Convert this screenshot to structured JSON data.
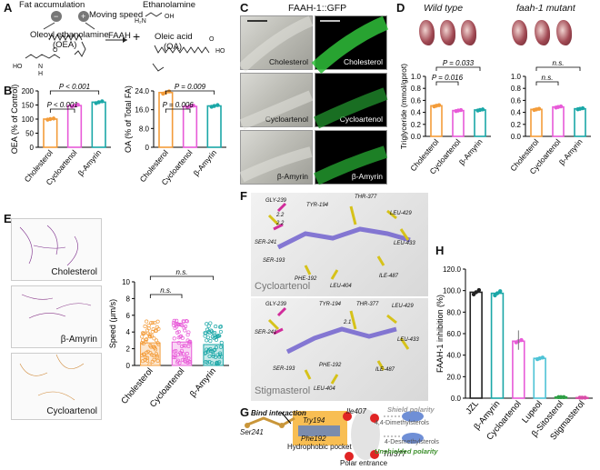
{
  "colors": {
    "cholesterol": "#f39c3a",
    "cycloartenol": "#e85ad8",
    "amyrin": "#1aa7a7",
    "lupeol": "#4ec3d6",
    "sitosterol": "#2e9e44",
    "stigmasterol": "#d94ca8",
    "jzl": "#222222",
    "orange_bar": "#f7a03c"
  },
  "panels": {
    "A": "A",
    "B": "B",
    "C": "C",
    "D": "D",
    "E": "E",
    "F": "F",
    "G": "G",
    "H": "H"
  },
  "panelA": {
    "fat_accumulation": "Fat accumulation",
    "moving_speed": "Moving speed",
    "ethanolamine": "Ethanolamine",
    "oea": "Oleoyl ethanolamine",
    "oea_abbr": "(OEA)",
    "faah": "FAAH",
    "plus": "+",
    "oleic_acid": "Oleic acid",
    "oa_abbr": "(OA)",
    "h2n": "H₂N",
    "ho": "HO",
    "oh": "OH",
    "ho2": "HO",
    "nh": "N",
    "h": "H",
    "o": "O",
    "o2": "O",
    "minus": "−",
    "plus_sign": "+"
  },
  "panelC": {
    "title": "FAAH-1::GFP",
    "labels": [
      "Cholesterol",
      "Cycloartenol",
      "β-Amyrin"
    ]
  },
  "panelD": {
    "wild_type": "Wild type",
    "mutant": "faah-1 mutant",
    "ylabel": "Triglyceride (mmol/gprot)"
  },
  "panelE": {
    "tracks": [
      "Cholesterol",
      "β-Amyrin",
      "Cycloartenol"
    ],
    "ylabel": "Speed (μm/s)"
  },
  "panelF": {
    "top_label": "Cycloartenol",
    "bottom_label": "Stigmasterol",
    "residues_top": [
      "GLY-239",
      "TYR-194",
      "THR-377",
      "LEU-429",
      "SER-241",
      "LEU-433",
      "SER-193",
      "PHE-192",
      "ILE-487",
      "LEU-404"
    ],
    "residues_bottom": [
      "GLY-239",
      "TYR-194",
      "THR-377",
      "LEU-429",
      "SER-241",
      "LEU-433",
      "SER-193",
      "PHE-192",
      "ILE-487",
      "LEU-404"
    ],
    "dist_top": [
      "2.2",
      "2.2"
    ],
    "dist_bottom": [
      "2.1"
    ]
  },
  "panelG": {
    "bind_interaction": "Bind interaction",
    "ile407": "Ile407",
    "try194": "Try194",
    "ser241": "Ser241",
    "phe192": "Phe192",
    "hydrophobic_pocket": "Hydrophobic pocket",
    "thr377": "Thr377",
    "polar_entrance": "Polar entrance",
    "shield": "Shield polarity",
    "dimethyl": "4,4-Dimethylsterols",
    "desmethyl": "4-Desmethylsterols",
    "unshielded": "Unshielded polarity"
  },
  "chart_data": [
    {
      "type": "bar",
      "panel": "B-left",
      "categories": [
        "Cholesterol",
        "Cycloartenol",
        "β-Amyrin"
      ],
      "values": [
        100,
        148,
        160
      ],
      "ylabel": "OEA (% of Control)",
      "ylim": [
        0,
        200
      ],
      "yticks": [
        0,
        50,
        100,
        150,
        200
      ],
      "annotations": [
        {
          "text": "P < 0.001",
          "pair": [
            "Cholesterol",
            "β-Amyrin"
          ]
        },
        {
          "text": "P < 0.001",
          "pair": [
            "Cholesterol",
            "Cycloartenol"
          ]
        }
      ]
    },
    {
      "type": "bar",
      "panel": "B-right",
      "categories": [
        "Cholesterol",
        "Cycloartenol",
        "β-Amyrin"
      ],
      "values": [
        23.3,
        17.4,
        17.6
      ],
      "ylabel": "OA (% of Total FA)",
      "ylim": [
        0,
        24
      ],
      "yticks": [
        0,
        8.0,
        16.0,
        24.0
      ],
      "ytick_labels": [
        "0",
        "8.0",
        "16.0",
        "24.0"
      ],
      "annotations": [
        {
          "text": "P = 0.009",
          "pair": [
            "Cholesterol",
            "β-Amyrin"
          ]
        },
        {
          "text": "P = 0.006",
          "pair": [
            "Cholesterol",
            "Cycloartenol"
          ]
        }
      ]
    },
    {
      "type": "bar",
      "panel": "D-left",
      "categories": [
        "Cholesterol",
        "Cycloartenol",
        "β-Amyrin"
      ],
      "values": [
        0.51,
        0.43,
        0.44
      ],
      "ylim": [
        0,
        1.0
      ],
      "yticks": [
        0,
        0.2,
        0.4,
        0.6,
        0.8,
        1.0
      ],
      "ytick_labels": [
        "0.0",
        "0.2",
        "0.4",
        "0.6",
        "0.8",
        "1.0"
      ],
      "annotations": [
        {
          "text": "P = 0.033",
          "pair": [
            "Cholesterol",
            "β-Amyrin"
          ]
        },
        {
          "text": "P = 0.016",
          "pair": [
            "Cholesterol",
            "Cycloartenol"
          ]
        }
      ]
    },
    {
      "type": "bar",
      "panel": "D-right",
      "categories": [
        "Cholesterol",
        "Cycloartenol",
        "β-Amyrin"
      ],
      "values": [
        0.45,
        0.49,
        0.46
      ],
      "ylim": [
        0,
        1.0
      ],
      "yticks": [
        0,
        0.2,
        0.4,
        0.6,
        0.8,
        1.0
      ],
      "ytick_labels": [
        "0.0",
        "0.2",
        "0.4",
        "0.6",
        "0.8",
        "1.0"
      ],
      "annotations": [
        {
          "text": "n.s.",
          "pair": [
            "Cholesterol",
            "β-Amyrin"
          ]
        },
        {
          "text": "n.s.",
          "pair": [
            "Cholesterol",
            "Cycloartenol"
          ]
        }
      ]
    },
    {
      "type": "bar",
      "panel": "E",
      "categories": [
        "Cholesterol",
        "Cycloartenol",
        "β-Amyrin"
      ],
      "values": [
        2.7,
        2.8,
        2.5
      ],
      "ylabel": "Speed (μm/s)",
      "ylim": [
        0,
        10
      ],
      "yticks": [
        0,
        2,
        4,
        6,
        8,
        10
      ],
      "annotations": [
        {
          "text": "n.s.",
          "pair": [
            "Cholesterol",
            "β-Amyrin"
          ]
        },
        {
          "text": "n.s.",
          "pair": [
            "Cholesterol",
            "Cycloartenol"
          ]
        }
      ]
    },
    {
      "type": "bar",
      "panel": "H",
      "categories": [
        "JZL",
        "β-Amyrin",
        "Cycloartenol",
        "Lupeol",
        "β-Sitosterol",
        "Stigmasterol"
      ],
      "values": [
        98.5,
        97.5,
        53,
        37,
        1,
        0.5
      ],
      "ylabel": "FAAH-1 inhibition (%)",
      "ylim": [
        0,
        120
      ],
      "yticks": [
        0,
        20,
        40,
        60,
        80,
        100,
        120
      ],
      "ytick_labels": [
        "0.0",
        "20.0",
        "40.0",
        "60.0",
        "80.0",
        "100.0",
        "120.0"
      ]
    }
  ]
}
